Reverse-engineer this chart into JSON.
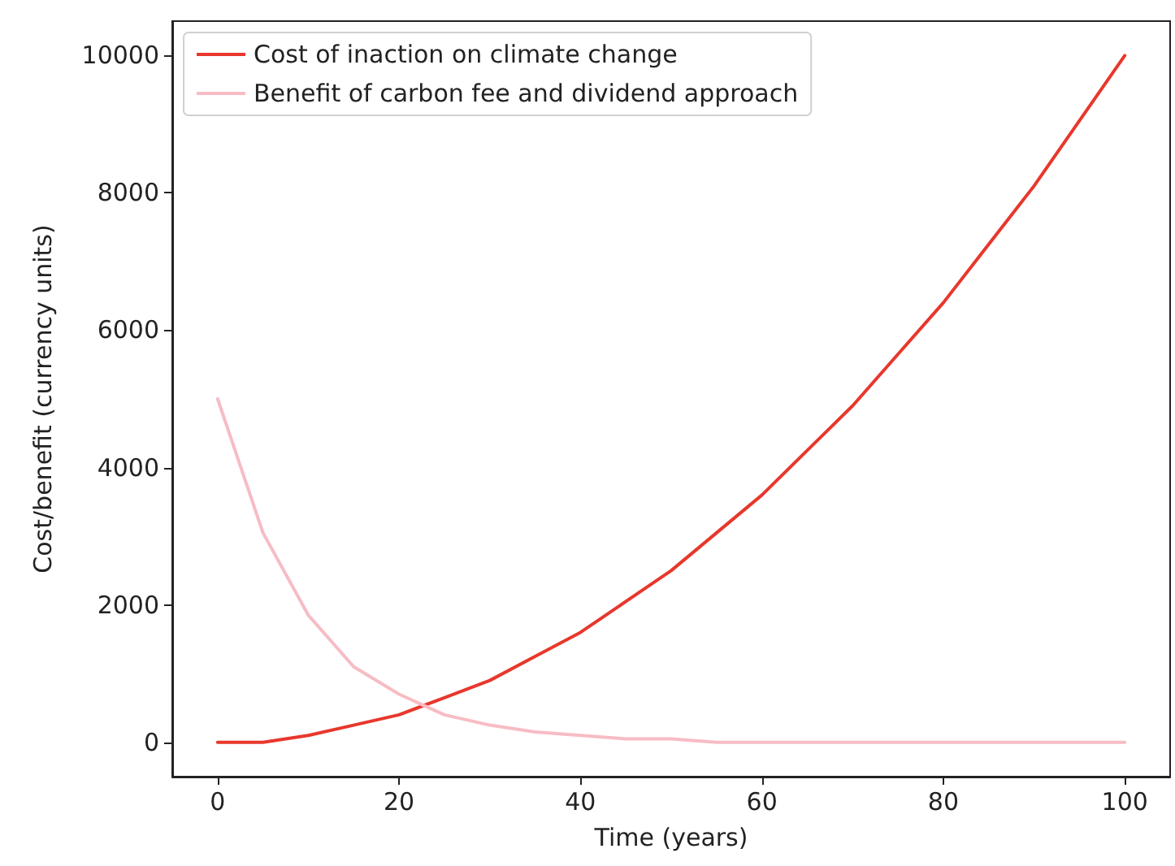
{
  "chart_data": {
    "type": "line",
    "xlabel": "Time (years)",
    "ylabel": "Cost/benefit (currency units)",
    "x": [
      0,
      5,
      10,
      15,
      20,
      25,
      30,
      35,
      40,
      45,
      50,
      55,
      60,
      65,
      70,
      75,
      80,
      85,
      90,
      95,
      100
    ],
    "series": [
      {
        "name": "Cost of inaction on climate change",
        "color": "#e8372c",
        "values": [
          0,
          0,
          100,
          250,
          400,
          650,
          900,
          1250,
          1600,
          2050,
          2500,
          3050,
          3600,
          4250,
          4900,
          5650,
          6400,
          7250,
          8100,
          9050,
          10000
        ]
      },
      {
        "name": "Benefit of carbon fee and dividend approach",
        "color": "#f7bcc4",
        "values": [
          5000,
          3050,
          1850,
          1100,
          700,
          400,
          250,
          150,
          100,
          50,
          50,
          0,
          0,
          0,
          0,
          0,
          0,
          0,
          0,
          0,
          0
        ]
      }
    ],
    "xlim": [
      -5,
      105
    ],
    "xticks": [
      0,
      20,
      40,
      60,
      80,
      100
    ],
    "ylim": [
      -500,
      10500
    ],
    "yticks": [
      0,
      2000,
      4000,
      6000,
      8000,
      10000
    ],
    "grid": false,
    "legend": "top left",
    "marker": "none",
    "line_style": "solid"
  }
}
